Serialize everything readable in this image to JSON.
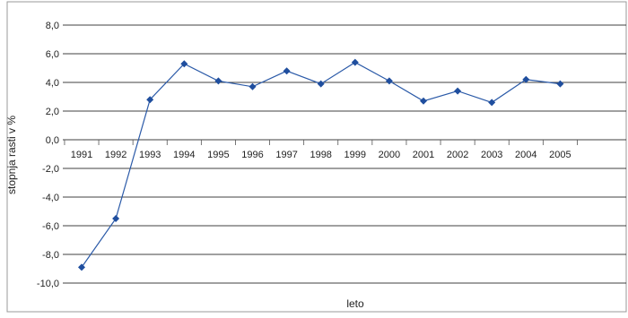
{
  "chart_data": {
    "type": "line",
    "x": [
      "1991",
      "1992",
      "1993",
      "1994",
      "1995",
      "1996",
      "1997",
      "1998",
      "1999",
      "2000",
      "2001",
      "2002",
      "2003",
      "2004",
      "2005"
    ],
    "series": [
      {
        "name": "",
        "values": [
          -8.9,
          -5.5,
          2.8,
          5.3,
          4.1,
          3.7,
          4.8,
          3.9,
          5.4,
          4.1,
          2.7,
          3.4,
          2.6,
          4.2,
          3.9
        ]
      }
    ],
    "xlabel": "leto",
    "ylabel": "stopnja rasti v %",
    "ylim": [
      -10,
      8
    ],
    "yticks": [
      "8,0",
      "6,0",
      "4,0",
      "2,0",
      "0,0",
      "-2,0",
      "-4,0",
      "-6,0",
      "-8,0",
      "-10,0"
    ],
    "grid": true,
    "colors": {
      "line": "#2b5aa8",
      "marker": "#1f4e9e",
      "grid": "#000000",
      "frame": "#999999"
    }
  }
}
